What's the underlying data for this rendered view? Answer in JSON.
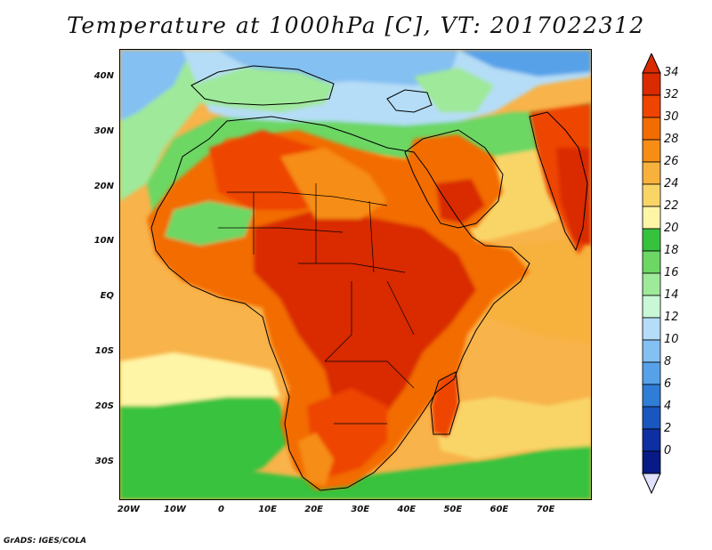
{
  "title": "Temperature at 1000hPa [C], VT: 2017022312",
  "credit": "GrADS: IGES/COLA",
  "axes": {
    "lat_ticks": [
      "40N",
      "30N",
      "20N",
      "10N",
      "EQ",
      "10S",
      "20S",
      "30S"
    ],
    "lat_values": [
      40,
      30,
      20,
      10,
      0,
      -10,
      -20,
      -30
    ],
    "lon_ticks": [
      "20W",
      "10W",
      "0",
      "10E",
      "20E",
      "30E",
      "40E",
      "50E",
      "60E",
      "70E"
    ],
    "lon_values": [
      -20,
      -10,
      0,
      10,
      20,
      30,
      40,
      50,
      60,
      70
    ],
    "lon_range": [
      -22,
      80
    ],
    "lat_range": [
      -37,
      45
    ]
  },
  "colorbar": {
    "labels": [
      "34",
      "32",
      "30",
      "28",
      "26",
      "24",
      "22",
      "20",
      "18",
      "16",
      "14",
      "12",
      "10",
      "8",
      "6",
      "4",
      "2",
      "0"
    ],
    "colors": [
      "#d92a00",
      "#ee4400",
      "#f36c00",
      "#f68d14",
      "#f7b13c",
      "#f9d568",
      "#fff5a6",
      "#37c23e",
      "#6cd764",
      "#9fe99a",
      "#c8f8d6",
      "#b5ddf7",
      "#84c0f2",
      "#57a1e8",
      "#2f7dd7",
      "#1a56c0",
      "#0d2fa3",
      "#081a86"
    ],
    "under_color": "#e0e0ff"
  }
}
